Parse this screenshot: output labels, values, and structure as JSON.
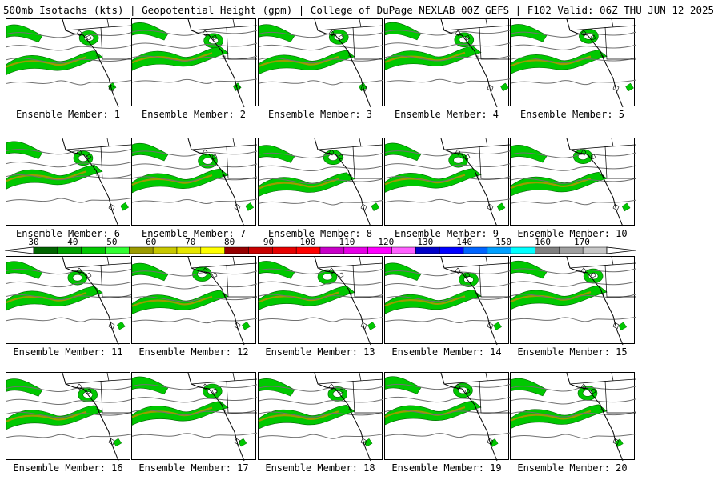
{
  "header": {
    "title": "500mb Isotachs (kts) | Geopotential Height (gpm) | College of DuPage NEXLAB   00Z GEFS | F102 Valid: 06Z THU JUN 12 2025"
  },
  "panels": [
    {
      "label": "Ensemble Member: 1"
    },
    {
      "label": "Ensemble Member: 2"
    },
    {
      "label": "Ensemble Member: 3"
    },
    {
      "label": "Ensemble Member: 4"
    },
    {
      "label": "Ensemble Member: 5"
    },
    {
      "label": "Ensemble Member: 6"
    },
    {
      "label": "Ensemble Member: 7"
    },
    {
      "label": "Ensemble Member: 8"
    },
    {
      "label": "Ensemble Member: 9"
    },
    {
      "label": "Ensemble Member: 10"
    },
    {
      "label": "Ensemble Member: 11"
    },
    {
      "label": "Ensemble Member: 12"
    },
    {
      "label": "Ensemble Member: 13"
    },
    {
      "label": "Ensemble Member: 14"
    },
    {
      "label": "Ensemble Member: 15"
    },
    {
      "label": "Ensemble Member: 16"
    },
    {
      "label": "Ensemble Member: 17"
    },
    {
      "label": "Ensemble Member: 18"
    },
    {
      "label": "Ensemble Member: 19"
    },
    {
      "label": "Ensemble Member: 20"
    }
  ],
  "colorbar": {
    "ticks": [
      "30",
      "40",
      "50",
      "60",
      "70",
      "80",
      "90",
      "100",
      "110",
      "120",
      "130",
      "140",
      "150",
      "160",
      "170"
    ],
    "colors": [
      "#006400",
      "#00a000",
      "#00c800",
      "#32ff32",
      "#9b9b00",
      "#c8c800",
      "#e6e600",
      "#ffff00",
      "#960000",
      "#c80000",
      "#e60000",
      "#ff0000",
      "#c800c8",
      "#e600e6",
      "#ff00ff",
      "#ff60ff",
      "#0000c8",
      "#0000ff",
      "#0064ff",
      "#00a0ff",
      "#00ffff",
      "#808080",
      "#a0a0a0",
      "#c8c8c8"
    ]
  }
}
